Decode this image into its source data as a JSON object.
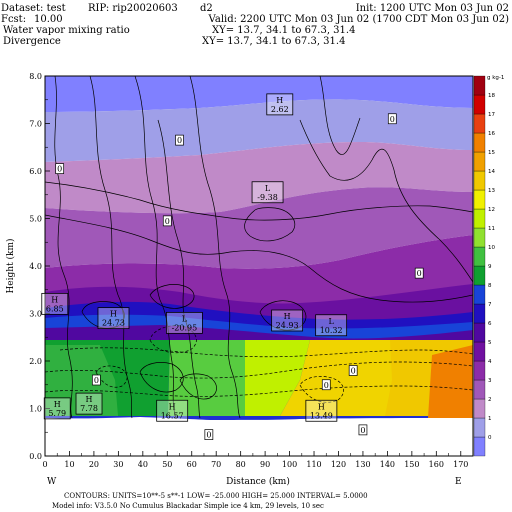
{
  "header": {
    "dataset": "Dataset: test",
    "rip": "RIP: rip20020603",
    "domain_id": "d2",
    "init": "Init: 1200 UTC Mon 03 Jun 02",
    "fcst_label": "Fcst:",
    "fcst_value": "10.00",
    "valid": "Valid: 2200 UTC Mon 03 Jun 02 (1700 CDT Mon 03 Jun 02)",
    "field1": "Water vapor mixing ratio",
    "field1_xy": "XY=  13.7, 34.1  to  67.3, 31.4",
    "field2": "Divergence",
    "field2_xy": "XY=  13.7, 34.1  to  67.3, 31.4"
  },
  "footer": {
    "line1": "CONTOURS:  UNITS=10**-5 s**-1    LOW=  -25.000       HIGH=  25.000       INTERVAL=    5.0000",
    "line2": "Model info: V3.5.0 No Cumulus Blackadar  Simple ice     4 km,  29 levels,  10 sec"
  },
  "chart_data": {
    "type": "contour",
    "xlabel": "Distance (km)",
    "ylabel": "Height (km)",
    "xlim": [
      0,
      175
    ],
    "ylim": [
      0,
      8
    ],
    "xticks": [
      0,
      10,
      20,
      30,
      40,
      50,
      60,
      70,
      80,
      90,
      100,
      110,
      120,
      130,
      140,
      150,
      160,
      170
    ],
    "yticks": [
      "0.0",
      "1.0",
      "2.0",
      "3.0",
      "4.0",
      "5.0",
      "6.0",
      "7.0",
      "8.0"
    ],
    "end_labels": {
      "left": "W",
      "right": "E"
    },
    "colorbar": {
      "unit": "g kg-1",
      "levels": [
        0,
        1,
        2,
        3,
        4,
        5,
        6,
        7,
        8,
        9,
        10,
        11,
        12,
        13,
        14,
        15,
        16,
        17,
        18
      ],
      "colors": [
        "#8080ff",
        "#9f9fe8",
        "#c08ac8",
        "#a058b8",
        "#8c2ca8",
        "#7010a0",
        "#5008a0",
        "#2010c0",
        "#1844d8",
        "#10a030",
        "#40c040",
        "#90e030",
        "#c0f000",
        "#f0f000",
        "#f0c800",
        "#f0a000",
        "#f08000",
        "#e84010",
        "#d00000",
        "#a00010"
      ]
    },
    "extrema": [
      {
        "kind": "H",
        "value": "2.62",
        "x": 96,
        "y": 7.35
      },
      {
        "kind": "L",
        "value": "-9.38",
        "x": 91,
        "y": 5.5
      },
      {
        "kind": "H",
        "value": "6.85",
        "x": 4,
        "y": 3.15
      },
      {
        "kind": "H",
        "value": "24.73",
        "x": 28,
        "y": 2.85
      },
      {
        "kind": "L",
        "value": "-20.95",
        "x": 57,
        "y": 2.75
      },
      {
        "kind": "H",
        "value": "24.93",
        "x": 99,
        "y": 2.8
      },
      {
        "kind": "L",
        "value": "10.32",
        "x": 117,
        "y": 2.7
      },
      {
        "kind": "H",
        "value": "5.79",
        "x": 5,
        "y": 0.95
      },
      {
        "kind": "H",
        "value": "7.78",
        "x": 18,
        "y": 1.05
      },
      {
        "kind": "H",
        "value": "16.57",
        "x": 52,
        "y": 0.9
      },
      {
        "kind": "H",
        "value": "13.49",
        "x": 113,
        "y": 0.9
      }
    ],
    "zero_labels": [
      {
        "value": "0",
        "x": 55,
        "y": 6.65
      },
      {
        "value": "0",
        "x": 6,
        "y": 6.05
      },
      {
        "value": "0",
        "x": 142,
        "y": 7.1
      },
      {
        "value": "0",
        "x": 50,
        "y": 4.95
      },
      {
        "value": "0",
        "x": 153,
        "y": 3.85
      },
      {
        "value": "0",
        "x": 21,
        "y": 1.6
      },
      {
        "value": "0",
        "x": 126,
        "y": 1.8
      },
      {
        "value": "0",
        "x": 115,
        "y": 1.5
      },
      {
        "value": "0",
        "x": 67,
        "y": 0.45
      },
      {
        "value": "0",
        "x": 130,
        "y": 0.55
      }
    ]
  }
}
